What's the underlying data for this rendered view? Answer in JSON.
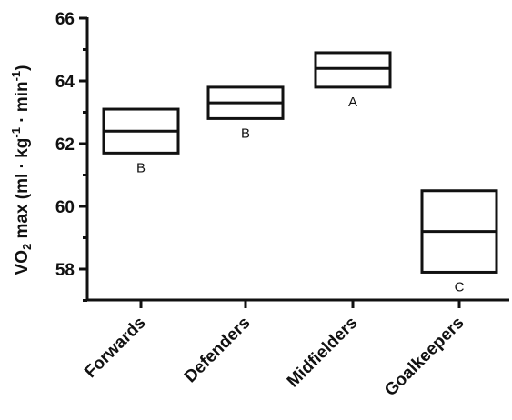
{
  "chart_data": {
    "type": "box",
    "categories": [
      "Forwards",
      "Defenders",
      "Midfielders",
      "Goalkeepers"
    ],
    "series": [
      {
        "boxes": [
          {
            "low": 61.7,
            "mid": 62.4,
            "high": 63.1
          },
          {
            "low": 62.8,
            "mid": 63.3,
            "high": 63.8
          },
          {
            "low": 63.8,
            "mid": 64.4,
            "high": 64.9
          },
          {
            "low": 57.9,
            "mid": 59.2,
            "high": 60.5
          }
        ],
        "group_letters": [
          "B",
          "B",
          "A",
          "C"
        ]
      }
    ],
    "ylabel_main": "VO",
    "ylabel_sub": "2",
    "ylabel_rest": " max (ml · kg",
    "ylabel_sup1": "-1",
    "ylabel_mid": " · min",
    "ylabel_sup2": "-1",
    "ylabel_close": ")",
    "ylim": [
      57,
      66
    ],
    "yticks": [
      58,
      60,
      62,
      64,
      66
    ],
    "grid": false,
    "legend": "none"
  }
}
